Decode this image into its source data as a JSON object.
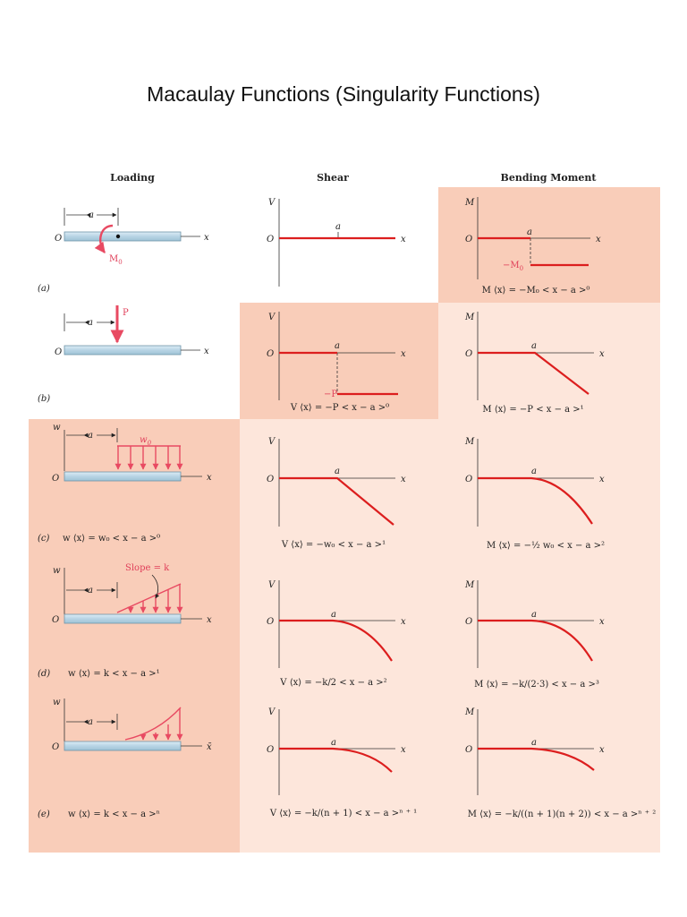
{
  "title": "Macaulay Functions (Singularity Functions)",
  "colors": {
    "shade_dark": "#f9cdb9",
    "shade_light": "#fde6db",
    "curve": "#dc1e1e",
    "arrow": "#e84a62",
    "beam_light": "#cfe4ef",
    "beam_dark": "#a9c9db"
  },
  "headers": {
    "loading": "Loading",
    "shear": "Shear",
    "moment": "Bending Moment"
  },
  "axis_labels": {
    "V": "V",
    "M": "M",
    "w": "w",
    "O": "O",
    "x": "x",
    "a": "a",
    "x_bar": "x̄"
  },
  "rows": {
    "a": {
      "tag": "(a)",
      "load_label": "M",
      "load_sub": "0",
      "moment_value_label": "−M",
      "moment_value_sub": "0",
      "moment_eq": "M ⟨x⟩ = −M₀ < x − a >⁰"
    },
    "b": {
      "tag": "(b)",
      "load_label": "P",
      "shear_value_label": "−P",
      "shear_eq": "V ⟨x⟩ = −P < x − a >⁰",
      "moment_eq": "M ⟨x⟩ = −P < x − a >¹"
    },
    "c": {
      "tag": "(c)",
      "load_label": "w",
      "load_sub": "0",
      "load_eq": "w ⟨x⟩ = w₀ < x − a >⁰",
      "shear_eq": "V ⟨x⟩ = −w₀ < x − a >¹",
      "moment_eq": "M ⟨x⟩ = −½ w₀ < x − a >²"
    },
    "d": {
      "tag": "(d)",
      "load_label": "Slope = k",
      "load_eq": "w ⟨x⟩ = k < x − a >¹",
      "shear_eq": "V ⟨x⟩ = −k/2 < x − a >²",
      "moment_eq": "M ⟨x⟩ = −k/(2·3) < x − a >³"
    },
    "e": {
      "tag": "(e)",
      "load_eq": "w ⟨x⟩ = k < x − a >ⁿ",
      "shear_eq": "V ⟨x⟩ = −k/(n + 1) < x − a >ⁿ ⁺ ¹",
      "moment_eq": "M ⟨x⟩ = −k/((n + 1)(n + 2)) < x − a >ⁿ ⁺ ²"
    }
  }
}
